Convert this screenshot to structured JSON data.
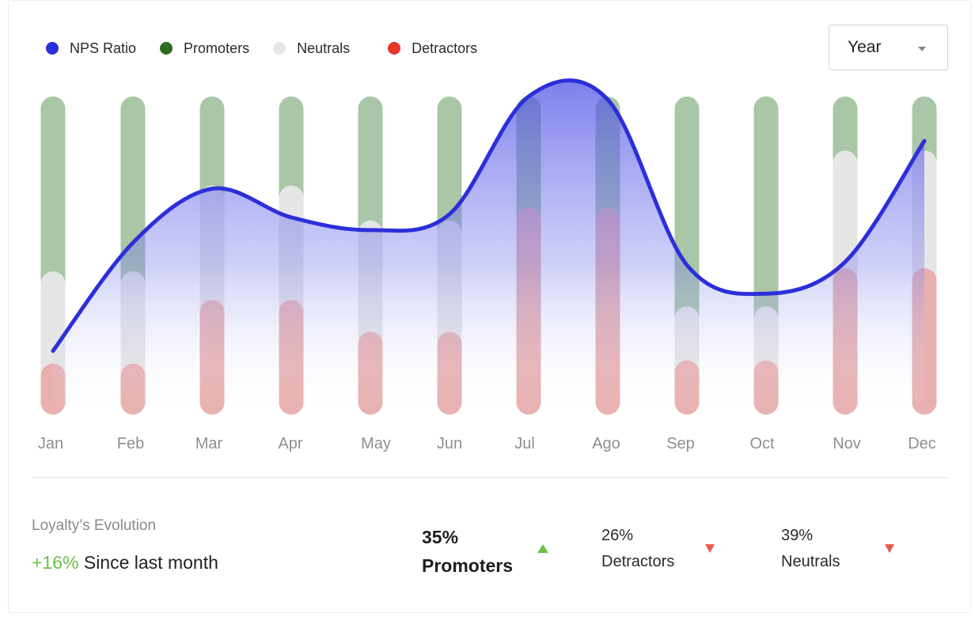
{
  "legend": [
    {
      "label": "NPS Ratio",
      "color": "#2c2fd9",
      "key": "nps"
    },
    {
      "label": "Promoters",
      "color": "#2e6b24",
      "key": "promoters"
    },
    {
      "label": "Neutrals",
      "color": "#e6e6e6",
      "key": "neutrals"
    },
    {
      "label": "Detractors",
      "color": "#e8362c",
      "key": "detractors"
    }
  ],
  "period_select": {
    "value": "Year",
    "icon": "chevron-down-icon"
  },
  "chart_data": {
    "type": "bar",
    "categories": [
      "Jan",
      "Feb",
      "Mar",
      "Apr",
      "May",
      "Jun",
      "Jul",
      "Ago",
      "Sep",
      "Oct",
      "Nov",
      "Dec"
    ],
    "ylim": [
      0,
      100
    ],
    "series": [
      {
        "name": "Promoters",
        "type": "bar",
        "color": "#a9c7a6",
        "values": [
          100,
          100,
          100,
          100,
          100,
          100,
          100,
          100,
          100,
          100,
          100,
          100
        ]
      },
      {
        "name": "Neutrals",
        "type": "bar",
        "color": "#e6e6e6",
        "values": [
          45,
          45,
          72,
          72,
          61,
          61,
          65,
          65,
          34,
          34,
          83,
          83
        ]
      },
      {
        "name": "Detractors",
        "type": "bar",
        "color": "#e8b1b0",
        "values": [
          16,
          16,
          36,
          36,
          26,
          26,
          65,
          65,
          17,
          17,
          46,
          46
        ]
      },
      {
        "name": "NPS Ratio",
        "type": "line",
        "color": "#2c2fd9",
        "values": [
          20,
          54,
          71,
          62,
          58,
          63,
          100,
          99,
          47,
          38,
          48,
          86
        ]
      }
    ],
    "grid": false,
    "legend_position": "top-left"
  },
  "summary": {
    "title": "Loyalty’s Evolution",
    "change_value": "+16%",
    "change_text": "Since last month",
    "promoters_pct": "35%",
    "promoters_label": "Promoters",
    "detractors_pct": "26%",
    "detractors_label": "Detractors",
    "neutrals_pct": "39%",
    "neutrals_label": "Neutrals",
    "up_color": "#6cc04a",
    "down_color": "#ee5a4e"
  }
}
